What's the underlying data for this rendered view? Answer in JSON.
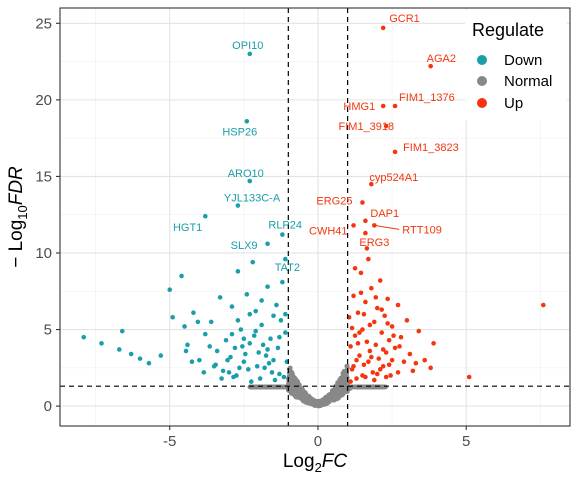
{
  "chart_data": {
    "type": "scatter",
    "title": "",
    "xlabel": "Log2FC",
    "ylabel": "-Log10FDR",
    "xlabel_parts": {
      "base": "Log",
      "sub": "2",
      "italic": "FC"
    },
    "ylabel_parts": {
      "prefix": "− Log",
      "sub": "10",
      "italic": "FDR"
    },
    "xlim": [
      -8.7,
      8.5
    ],
    "ylim": [
      -1.3,
      26
    ],
    "x_ticks": [
      -5,
      0,
      5
    ],
    "x_tick_labels": [
      "-5",
      "0",
      "5"
    ],
    "y_ticks": [
      0,
      5,
      10,
      15,
      20,
      25
    ],
    "y_tick_labels": [
      "0",
      "5",
      "10",
      "15",
      "20",
      "25"
    ],
    "grid": true,
    "thresholds": {
      "fc": 1,
      "fdr": 1.3
    },
    "legend": {
      "title": "Regulate",
      "placement": "top-right",
      "entries": [
        {
          "name": "Down",
          "color": "#1a9eab"
        },
        {
          "name": "Normal",
          "color": "#888888"
        },
        {
          "name": "Up",
          "color": "#f4360e"
        }
      ]
    },
    "colors": {
      "Down": "#1a9eab",
      "Normal": "#888888",
      "Up": "#f4360e"
    },
    "labeled_genes": [
      {
        "name": "GCR1",
        "x": 2.2,
        "y": 24.7,
        "group": "Up"
      },
      {
        "name": "AGA2",
        "x": 3.8,
        "y": 22.2,
        "group": "Up"
      },
      {
        "name": "FIM1_1376",
        "x": 2.6,
        "y": 19.6,
        "group": "Up"
      },
      {
        "name": "HMG1",
        "x": 2.2,
        "y": 19.6,
        "group": "Up"
      },
      {
        "name": "FIM1_3918",
        "x": 2.3,
        "y": 18.3,
        "group": "Up"
      },
      {
        "name": "FIM1_3823",
        "x": 2.6,
        "y": 16.6,
        "group": "Up"
      },
      {
        "name": "cyp524A1",
        "x": 1.8,
        "y": 14.5,
        "group": "Up"
      },
      {
        "name": "ERG25",
        "x": 1.5,
        "y": 13.3,
        "group": "Up"
      },
      {
        "name": "DAP1",
        "x": 1.6,
        "y": 12.1,
        "group": "Up"
      },
      {
        "name": "RTT109",
        "x": 1.9,
        "y": 11.8,
        "group": "Up"
      },
      {
        "name": "CWH41",
        "x": 1.2,
        "y": 11.8,
        "group": "Up"
      },
      {
        "name": "ERG3",
        "x": 1.6,
        "y": 11.3,
        "group": "Up"
      },
      {
        "name": "OPI10",
        "x": -2.3,
        "y": 23.0,
        "group": "Down"
      },
      {
        "name": "HSP26",
        "x": -2.4,
        "y": 18.6,
        "group": "Down"
      },
      {
        "name": "ARO10",
        "x": -2.3,
        "y": 14.7,
        "group": "Down"
      },
      {
        "name": "YJL133C-A",
        "x": -2.7,
        "y": 13.1,
        "group": "Down"
      },
      {
        "name": "HGT1",
        "x": -3.8,
        "y": 12.4,
        "group": "Down"
      },
      {
        "name": "RLP24",
        "x": -1.2,
        "y": 11.2,
        "group": "Down"
      },
      {
        "name": "SLX9",
        "x": -1.7,
        "y": 10.6,
        "group": "Down"
      },
      {
        "name": "TAT2",
        "x": -1.1,
        "y": 9.6,
        "group": "Down"
      }
    ],
    "down_points": [
      [
        -7.9,
        4.5
      ],
      [
        -7.3,
        4.1
      ],
      [
        -6.6,
        4.9
      ],
      [
        -6.7,
        3.7
      ],
      [
        -6.3,
        3.4
      ],
      [
        -6.0,
        3.1
      ],
      [
        -5.7,
        2.8
      ],
      [
        -5.3,
        3.3
      ],
      [
        -5.0,
        7.6
      ],
      [
        -4.9,
        5.8
      ],
      [
        -4.6,
        8.5
      ],
      [
        -4.5,
        5.2
      ],
      [
        -4.4,
        4.0
      ],
      [
        -4.2,
        6.1
      ],
      [
        -4.0,
        3.0
      ],
      [
        -3.8,
        4.7
      ],
      [
        -3.6,
        5.5
      ],
      [
        -3.5,
        2.6
      ],
      [
        -3.3,
        7.1
      ],
      [
        -3.1,
        4.3
      ],
      [
        -3.0,
        2.2
      ],
      [
        -2.9,
        6.5
      ],
      [
        -2.8,
        3.8
      ],
      [
        -2.7,
        8.8
      ],
      [
        -2.6,
        5.0
      ],
      [
        -2.5,
        2.9
      ],
      [
        -2.4,
        7.3
      ],
      [
        -2.3,
        4.1
      ],
      [
        -2.2,
        9.4
      ],
      [
        -2.1,
        6.2
      ],
      [
        -2.0,
        3.5
      ],
      [
        -1.9,
        5.3
      ],
      [
        -1.8,
        2.5
      ],
      [
        -1.7,
        7.8
      ],
      [
        -1.6,
        4.4
      ],
      [
        -1.5,
        3.0
      ],
      [
        -1.4,
        6.6
      ],
      [
        -1.3,
        2.1
      ],
      [
        -1.2,
        8.1
      ],
      [
        -1.1,
        4.8
      ],
      [
        -3.4,
        3.6
      ],
      [
        -3.2,
        2.3
      ],
      [
        -2.95,
        3.2
      ],
      [
        -2.75,
        2.0
      ],
      [
        -2.55,
        3.9
      ],
      [
        -2.35,
        2.4
      ],
      [
        -2.15,
        4.6
      ],
      [
        -1.95,
        1.8
      ],
      [
        -1.75,
        3.3
      ],
      [
        -1.55,
        2.2
      ],
      [
        -1.35,
        3.8
      ],
      [
        -1.15,
        1.9
      ],
      [
        -1.05,
        2.9
      ],
      [
        -1.25,
        5.6
      ],
      [
        -1.45,
        1.7
      ],
      [
        -1.65,
        2.8
      ],
      [
        -1.85,
        4.0
      ],
      [
        -2.05,
        2.6
      ],
      [
        -2.25,
        1.6
      ],
      [
        -2.45,
        3.4
      ],
      [
        -2.65,
        2.5
      ],
      [
        -2.85,
        1.9
      ],
      [
        -3.05,
        3.0
      ],
      [
        -3.25,
        1.8
      ],
      [
        -3.45,
        2.7
      ],
      [
        -3.65,
        3.9
      ],
      [
        -3.85,
        2.2
      ],
      [
        -4.05,
        5.5
      ],
      [
        -4.25,
        2.9
      ],
      [
        -4.45,
        3.6
      ],
      [
        -1.1,
        6.0
      ],
      [
        -1.3,
        4.5
      ],
      [
        -1.5,
        5.9
      ],
      [
        -1.7,
        3.7
      ],
      [
        -1.9,
        6.9
      ],
      [
        -2.1,
        4.9
      ],
      [
        -2.3,
        6.0
      ],
      [
        -2.5,
        4.4
      ],
      [
        -2.7,
        5.6
      ],
      [
        -2.9,
        4.7
      ]
    ],
    "up_points": [
      [
        1.05,
        5.8
      ],
      [
        1.1,
        3.9
      ],
      [
        1.15,
        2.4
      ],
      [
        1.2,
        7.2
      ],
      [
        1.25,
        4.6
      ],
      [
        1.3,
        1.8
      ],
      [
        1.35,
        6.1
      ],
      [
        1.4,
        3.3
      ],
      [
        1.45,
        8.7
      ],
      [
        1.5,
        5.0
      ],
      [
        1.55,
        2.7
      ],
      [
        1.6,
        6.8
      ],
      [
        1.65,
        4.2
      ],
      [
        1.7,
        9.6
      ],
      [
        1.75,
        3.6
      ],
      [
        1.8,
        7.7
      ],
      [
        1.85,
        2.2
      ],
      [
        1.9,
        5.5
      ],
      [
        1.95,
        4.0
      ],
      [
        2.0,
        6.4
      ],
      [
        2.05,
        3.1
      ],
      [
        2.1,
        8.2
      ],
      [
        2.15,
        4.8
      ],
      [
        2.2,
        2.6
      ],
      [
        2.25,
        5.9
      ],
      [
        2.3,
        3.5
      ],
      [
        2.35,
        7.0
      ],
      [
        2.4,
        4.3
      ],
      [
        2.45,
        2.0
      ],
      [
        2.5,
        5.2
      ],
      [
        2.6,
        3.8
      ],
      [
        2.7,
        6.6
      ],
      [
        2.8,
        4.5
      ],
      [
        2.9,
        2.9
      ],
      [
        3.0,
        5.6
      ],
      [
        3.1,
        3.4
      ],
      [
        3.2,
        2.3
      ],
      [
        3.4,
        4.9
      ],
      [
        3.6,
        3.0
      ],
      [
        3.8,
        2.5
      ],
      [
        3.9,
        4.1
      ],
      [
        3.3,
        2.8
      ],
      [
        5.1,
        1.9
      ],
      [
        7.6,
        6.6
      ],
      [
        1.1,
        1.6
      ],
      [
        1.3,
        3.0
      ],
      [
        1.5,
        2.0
      ],
      [
        1.7,
        2.9
      ],
      [
        1.9,
        1.7
      ],
      [
        2.1,
        2.4
      ],
      [
        2.3,
        1.9
      ],
      [
        2.5,
        3.0
      ],
      [
        2.7,
        2.2
      ],
      [
        1.2,
        2.6
      ],
      [
        1.4,
        4.8
      ],
      [
        1.6,
        1.9
      ],
      [
        1.8,
        3.2
      ],
      [
        2.0,
        2.1
      ],
      [
        2.2,
        3.7
      ],
      [
        2.4,
        2.7
      ],
      [
        1.15,
        5.1
      ],
      [
        1.35,
        4.1
      ],
      [
        1.55,
        6.0
      ],
      [
        1.75,
        5.3
      ],
      [
        1.95,
        7.1
      ],
      [
        2.15,
        6.3
      ],
      [
        2.35,
        5.4
      ],
      [
        2.55,
        4.6
      ],
      [
        2.75,
        3.9
      ],
      [
        1.25,
        9.0
      ],
      [
        1.45,
        7.4
      ],
      [
        1.65,
        10.3
      ]
    ]
  }
}
